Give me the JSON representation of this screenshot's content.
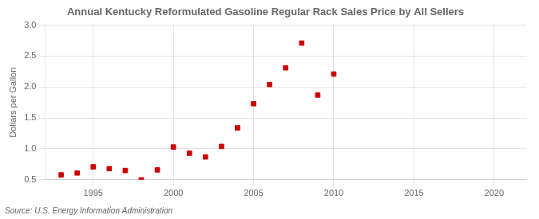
{
  "chart_data": {
    "type": "scatter",
    "title": "Annual Kentucky Reformulated Gasoline Regular Rack Sales Price by All Sellers",
    "y_label": "Dollars per Gallon",
    "annotations": [
      "Source: U.S. Energy Information Administration"
    ],
    "x": [
      1993,
      1994,
      1995,
      1996,
      1997,
      1998,
      1999,
      2000,
      2001,
      2002,
      2003,
      2004,
      2005,
      2006,
      2007,
      2008,
      2009,
      2010
    ],
    "values": [
      0.58,
      0.61,
      0.71,
      0.68,
      0.65,
      0.5,
      0.66,
      1.03,
      0.93,
      0.87,
      1.04,
      1.34,
      1.73,
      2.04,
      2.31,
      2.71,
      1.87,
      2.21
    ],
    "color": "#cc0000",
    "marker": "square",
    "xlim": [
      1992,
      2022
    ],
    "xticks": [
      1995,
      2000,
      2005,
      2010,
      2015,
      2020
    ],
    "ylim": [
      0.5,
      3.0
    ],
    "yticks": [
      0.5,
      {
        "value": 1.0,
        "label": "1.0"
      },
      1.5,
      {
        "value": 2.0,
        "label": "2.0"
      },
      2.5,
      {
        "value": 3.0,
        "label": "3.0"
      }
    ],
    "grid": true
  }
}
